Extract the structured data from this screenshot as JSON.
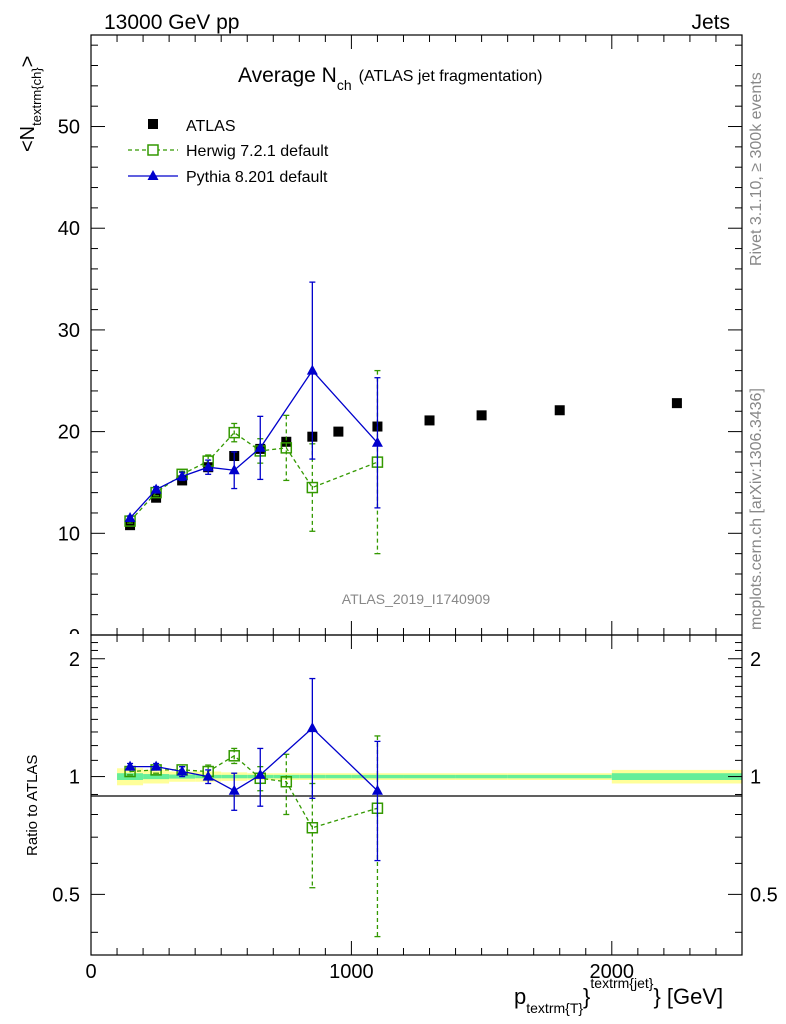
{
  "header": {
    "left": "13000 GeV pp",
    "right": "Jets"
  },
  "side": {
    "rivet": "Rivet 3.1.10, ≥ 300k events",
    "mcplots": "mcplots.cern.ch [arXiv:1306.3436]"
  },
  "chart_data": {
    "type": "scatter",
    "title": "Average N",
    "title_sub": "ch",
    "title_suffix": "(ATLAS jet fragmentation)",
    "watermark": "ATLAS_2019_I1740909",
    "ylabel_main": {
      "pre": "<N",
      "sub": "textrm{ch}",
      "post": ">"
    },
    "ylabel_ratio": "Ratio to ATLAS",
    "xlabel": {
      "pre": "p",
      "sub": "textrm{T}",
      "mid": "}",
      "sup": "textrm{jet}",
      "post": "} [GeV]"
    },
    "xlim": [
      0,
      2500
    ],
    "ylim_main": [
      0,
      59
    ],
    "ylim_ratio": [
      0.35,
      2.3
    ],
    "x_ticks": [
      "0",
      "1000",
      "2000"
    ],
    "y_ticks_main": [
      "10",
      "20",
      "30",
      "40",
      "50"
    ],
    "y_ticks_main_partial": "0",
    "y_ticks_ratio": [
      "0.5",
      "1",
      "2"
    ],
    "colors": {
      "data": "#000000",
      "herwig": "#339900",
      "pythia": "#0000cc",
      "band_inner": "#66ee99",
      "band_outer": "#ffff99"
    },
    "legend_position": "top-left",
    "series": [
      {
        "name": "ATLAS",
        "x": [
          150,
          250,
          350,
          450,
          550,
          650,
          750,
          850,
          950,
          1100,
          1300,
          1500,
          1800,
          2250
        ],
        "y": [
          10.8,
          13.5,
          15.2,
          16.5,
          17.6,
          18.3,
          19.0,
          19.5,
          20.0,
          20.5,
          21.1,
          21.6,
          22.1,
          22.8
        ]
      },
      {
        "name": "Herwig 7.2.1 default",
        "x": [
          150,
          250,
          350,
          450,
          550,
          650,
          750,
          850,
          1100
        ],
        "y": [
          11.2,
          14.0,
          15.8,
          17.1,
          19.9,
          18.1,
          18.4,
          14.5,
          17.0
        ],
        "yerr": [
          0.2,
          0.3,
          0.3,
          0.6,
          0.9,
          1.2,
          3.2,
          4.3,
          9.0
        ]
      },
      {
        "name": "Pythia 8.201 default",
        "x": [
          150,
          250,
          350,
          450,
          550,
          650,
          850,
          1100
        ],
        "y": [
          11.5,
          14.3,
          15.6,
          16.5,
          16.2,
          18.4,
          26.0,
          18.9
        ],
        "yerr": [
          0.2,
          0.3,
          0.4,
          0.7,
          1.8,
          3.1,
          8.7,
          6.4
        ]
      }
    ],
    "ratio_series": [
      {
        "name": "Herwig 7.2.1 default",
        "x": [
          150,
          250,
          350,
          450,
          550,
          650,
          750,
          850,
          1100
        ],
        "y": [
          1.03,
          1.04,
          1.04,
          1.03,
          1.13,
          0.99,
          0.97,
          0.74,
          0.83
        ],
        "yerr": [
          0.02,
          0.02,
          0.02,
          0.04,
          0.05,
          0.07,
          0.17,
          0.22,
          0.44
        ]
      },
      {
        "name": "Pythia 8.201 default",
        "x": [
          150,
          250,
          350,
          450,
          550,
          650,
          850,
          1100
        ],
        "y": [
          1.06,
          1.06,
          1.03,
          1.0,
          0.92,
          1.01,
          1.33,
          0.92
        ],
        "yerr": [
          0.02,
          0.02,
          0.03,
          0.04,
          0.1,
          0.17,
          0.45,
          0.31
        ]
      }
    ],
    "ratio_band": {
      "x_edges": [
        100,
        200,
        300,
        400,
        500,
        600,
        700,
        800,
        900,
        1000,
        1200,
        1400,
        1600,
        2000,
        2500
      ],
      "inner": [
        0.02,
        0.015,
        0.012,
        0.01,
        0.01,
        0.01,
        0.01,
        0.01,
        0.01,
        0.01,
        0.01,
        0.01,
        0.01,
        0.02
      ],
      "outer": [
        0.05,
        0.04,
        0.03,
        0.03,
        0.025,
        0.02,
        0.02,
        0.02,
        0.02,
        0.02,
        0.02,
        0.02,
        0.02,
        0.04
      ]
    }
  }
}
